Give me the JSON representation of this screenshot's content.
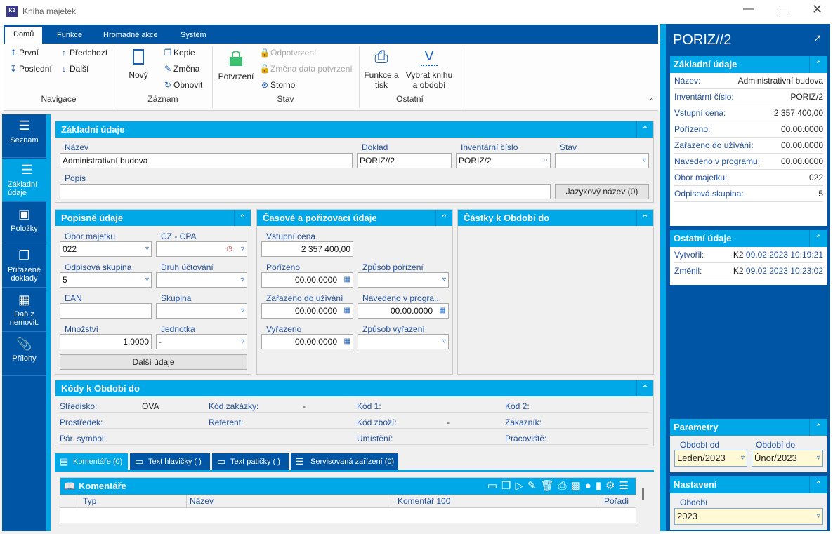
{
  "window": {
    "title": "Kniha majetek",
    "app_icon": "K2",
    "controls": [
      "minimize-icon",
      "maximize-icon",
      "close-icon"
    ]
  },
  "ribbon": {
    "tabs": [
      "Domů",
      "Funkce",
      "Hromadné akce",
      "Systém"
    ],
    "navigace": {
      "label": "Navigace",
      "first": "První",
      "last": "Poslední",
      "prev": "Předchozí",
      "next": "Další"
    },
    "zaznam": {
      "label": "Záznam",
      "new": "Nový",
      "copy": "Kopie",
      "change": "Změna",
      "refresh": "Obnovit"
    },
    "stav": {
      "label": "Stav",
      "confirm": "Potvrzení",
      "unconfirm": "Odpotvrzení",
      "change_date": "Změna data potvrzení",
      "storno": "Storno"
    },
    "ostatni": {
      "label": "Ostatní",
      "print": "Funkce a tisk",
      "select_book": "Vybrat knihu a období"
    }
  },
  "sidebar": {
    "items": [
      {
        "label": "Seznam"
      },
      {
        "label": "Základní údaje",
        "active": true
      },
      {
        "label": "Položky"
      },
      {
        "label": "Přiřazené doklady"
      },
      {
        "label": "Daň z nemovit."
      },
      {
        "label": "Přílohy"
      }
    ]
  },
  "basic": {
    "title": "Základní údaje",
    "nazev_label": "Název",
    "nazev": "Administrativní budova",
    "doklad_label": "Doklad",
    "doklad": "PORIZ//2",
    "inv_label": "Inventární číslo",
    "inv": "PORIZ/2",
    "stav_label": "Stav",
    "stav": "",
    "popis_label": "Popis",
    "popis": "",
    "lang_btn": "Jazykový název (0)"
  },
  "popisne": {
    "title": "Popisné údaje",
    "obor_label": "Obor majetku",
    "obor": "022",
    "cz_label": "CZ - CPA",
    "cz": "",
    "odp_label": "Odpisová skupina",
    "odp": "5",
    "druh_label": "Druh účtování",
    "druh": "",
    "ean_label": "EAN",
    "ean": "",
    "skup_label": "Skupina",
    "skup": "",
    "mn_label": "Množství",
    "mn": "1,0000",
    "jed_label": "Jednotka",
    "jed": "-",
    "more_btn": "Další údaje"
  },
  "casove": {
    "title": "Časové a pořizovací údaje",
    "vc_label": "Vstupní cena",
    "vc": "2 357 400,00",
    "por_label": "Pořízeno",
    "por": "00.00.0000",
    "zp_label": "Způsob pořízení",
    "zp": "",
    "zar_label": "Zařazeno do užívání",
    "zar": "00.00.0000",
    "nav_label": "Navedeno v progra...",
    "nav": "00.00.0000",
    "vyr_label": "Vyřazeno",
    "vyr": "00.00.0000",
    "zv_label": "Způsob vyřazení",
    "zv": ""
  },
  "castky": {
    "title": "Částky k Období do"
  },
  "kody": {
    "title": "Kódy k Období do",
    "stredisko_label": "Středisko:",
    "stredisko": "OVA",
    "zakazka_label": "Kód zakázky:",
    "zakazka": "-",
    "kod1_label": "Kód 1:",
    "kod2_label": "Kód 2:",
    "prostredek_label": "Prostředek:",
    "referent_label": "Referent:",
    "zbozi_label": "Kód zboží:",
    "zbozi": "-",
    "zakaznik_label": "Zákazník:",
    "par_label": "Pár. symbol:",
    "umisteni_label": "Umístění:",
    "pracoviste_label": "Pracoviště:"
  },
  "bottom_tabs": [
    "Komentáře (0)",
    "Text hlavičky ( )",
    "Text patičky ( )",
    "Servisovaná zařízení (0)"
  ],
  "grid": {
    "title": "Komentáře",
    "columns": [
      "Typ",
      "Název",
      "Komentář 100",
      "Pořadí"
    ]
  },
  "right": {
    "title": "PORIZ//2",
    "basic": {
      "title": "Základní údaje",
      "rows": [
        [
          "Název:",
          "Administrativní budova"
        ],
        [
          "Inventární číslo:",
          "PORIZ/2"
        ],
        [
          "Vstupní cena:",
          "2 357 400,00"
        ],
        [
          "Pořízeno:",
          "00.00.0000"
        ],
        [
          "Zařazeno do užívání:",
          "00.00.0000"
        ],
        [
          "Navedeno v programu:",
          "00.00.0000"
        ],
        [
          "Obor majetku:",
          "022"
        ],
        [
          "Odpisová skupina:",
          "5"
        ]
      ]
    },
    "other": {
      "title": "Ostatní údaje",
      "created_label": "Vytvořil:",
      "created_user": "K2",
      "created": "09.02.2023 10:19:21",
      "changed_label": "Změnil:",
      "changed_user": "K2",
      "changed": "09.02.2023 10:23:02"
    },
    "params": {
      "title": "Parametry",
      "from_label": "Období od",
      "from": "Leden/2023",
      "to_label": "Období do",
      "to": "Únor/2023"
    },
    "settings": {
      "title": "Nastavení",
      "period_label": "Období",
      "period": "2023"
    }
  },
  "colors": {
    "dark_blue": "#0055a5",
    "light_blue": "#00a8e8",
    "confirm_green": "#3cc070"
  }
}
